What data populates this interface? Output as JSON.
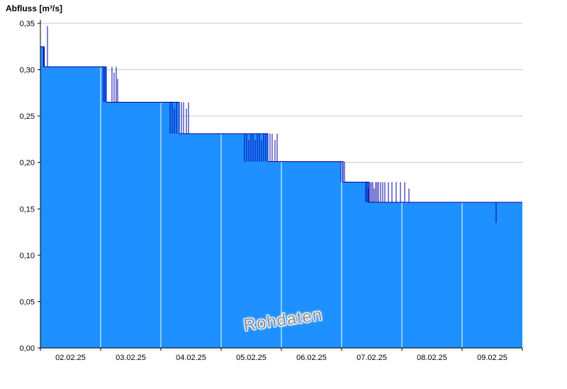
{
  "chart_data": {
    "type": "area",
    "title": "Abfluss [m³/s]",
    "ylabel": "Abfluss [m³/s]",
    "watermark": "Rohdaten",
    "grid": "horizontal",
    "legend": "none",
    "ylim": [
      0,
      0.35
    ],
    "yticks": [
      {
        "value": 0.0,
        "label": "0,00"
      },
      {
        "value": 0.05,
        "label": "0,05"
      },
      {
        "value": 0.1,
        "label": "0,10"
      },
      {
        "value": 0.15,
        "label": "0,15"
      },
      {
        "value": 0.2,
        "label": "0,20"
      },
      {
        "value": 0.25,
        "label": "0,25"
      },
      {
        "value": 0.3,
        "label": "0,30"
      },
      {
        "value": 0.35,
        "label": "0,35"
      }
    ],
    "x_axis": {
      "range_days": 8,
      "days": [
        "02.02.25",
        "03.02.25",
        "04.02.25",
        "05.02.25",
        "06.02.25",
        "07.02.25",
        "08.02.25",
        "09.02.25"
      ]
    },
    "series": {
      "name": "Rohdaten",
      "unit": "m³/s",
      "steps": [
        {
          "t": 0.0,
          "v": 0.325
        },
        {
          "t": 0.05,
          "v": 0.303
        },
        {
          "t": 1.094,
          "v": 0.265
        },
        {
          "t": 2.306,
          "v": 0.231
        },
        {
          "t": 3.776,
          "v": 0.201
        },
        {
          "t": 5.023,
          "v": 0.179
        },
        {
          "t": 5.45,
          "v": 0.157
        }
      ],
      "spikes": [
        {
          "t": 0.065,
          "lo": 0.303,
          "hi": 0.325
        },
        {
          "t": 0.115,
          "lo": 0.303,
          "hi": 0.347
        },
        {
          "t": 1.047,
          "lo": 0.265,
          "hi": 0.303
        },
        {
          "t": 1.071,
          "lo": 0.265,
          "hi": 0.303
        },
        {
          "t": 1.188,
          "lo": 0.265,
          "hi": 0.303
        },
        {
          "t": 1.224,
          "lo": 0.265,
          "hi": 0.297
        },
        {
          "t": 1.259,
          "lo": 0.265,
          "hi": 0.303
        },
        {
          "t": 1.282,
          "lo": 0.265,
          "hi": 0.29
        },
        {
          "t": 2.153,
          "lo": 0.231,
          "hi": 0.265
        },
        {
          "t": 2.188,
          "lo": 0.231,
          "hi": 0.265
        },
        {
          "t": 2.224,
          "lo": 0.231,
          "hi": 0.258
        },
        {
          "t": 2.259,
          "lo": 0.231,
          "hi": 0.265
        },
        {
          "t": 2.341,
          "lo": 0.231,
          "hi": 0.265
        },
        {
          "t": 2.376,
          "lo": 0.231,
          "hi": 0.265
        },
        {
          "t": 2.424,
          "lo": 0.231,
          "hi": 0.258
        },
        {
          "t": 2.459,
          "lo": 0.231,
          "hi": 0.265
        },
        {
          "t": 3.388,
          "lo": 0.201,
          "hi": 0.231
        },
        {
          "t": 3.424,
          "lo": 0.201,
          "hi": 0.231
        },
        {
          "t": 3.459,
          "lo": 0.201,
          "hi": 0.224
        },
        {
          "t": 3.494,
          "lo": 0.201,
          "hi": 0.231
        },
        {
          "t": 3.529,
          "lo": 0.201,
          "hi": 0.231
        },
        {
          "t": 3.565,
          "lo": 0.201,
          "hi": 0.224
        },
        {
          "t": 3.6,
          "lo": 0.201,
          "hi": 0.231
        },
        {
          "t": 3.635,
          "lo": 0.201,
          "hi": 0.231
        },
        {
          "t": 3.671,
          "lo": 0.201,
          "hi": 0.224
        },
        {
          "t": 3.706,
          "lo": 0.201,
          "hi": 0.231
        },
        {
          "t": 3.741,
          "lo": 0.201,
          "hi": 0.231
        },
        {
          "t": 3.812,
          "lo": 0.201,
          "hi": 0.231
        },
        {
          "t": 3.847,
          "lo": 0.201,
          "hi": 0.231
        },
        {
          "t": 3.894,
          "lo": 0.201,
          "hi": 0.224
        },
        {
          "t": 3.929,
          "lo": 0.201,
          "hi": 0.231
        },
        {
          "t": 4.988,
          "lo": 0.179,
          "hi": 0.201
        },
        {
          "t": 5.047,
          "lo": 0.179,
          "hi": 0.201
        },
        {
          "t": 5.4,
          "lo": 0.157,
          "hi": 0.179
        },
        {
          "t": 5.424,
          "lo": 0.157,
          "hi": 0.179
        },
        {
          "t": 5.447,
          "lo": 0.157,
          "hi": 0.172
        },
        {
          "t": 5.471,
          "lo": 0.157,
          "hi": 0.179
        },
        {
          "t": 5.494,
          "lo": 0.157,
          "hi": 0.179
        },
        {
          "t": 5.518,
          "lo": 0.157,
          "hi": 0.179
        },
        {
          "t": 5.541,
          "lo": 0.157,
          "hi": 0.172
        },
        {
          "t": 5.565,
          "lo": 0.157,
          "hi": 0.179
        },
        {
          "t": 5.588,
          "lo": 0.157,
          "hi": 0.179
        },
        {
          "t": 5.612,
          "lo": 0.157,
          "hi": 0.179
        },
        {
          "t": 5.647,
          "lo": 0.157,
          "hi": 0.179
        },
        {
          "t": 5.682,
          "lo": 0.157,
          "hi": 0.179
        },
        {
          "t": 5.718,
          "lo": 0.157,
          "hi": 0.179
        },
        {
          "t": 5.776,
          "lo": 0.157,
          "hi": 0.179
        },
        {
          "t": 5.835,
          "lo": 0.157,
          "hi": 0.179
        },
        {
          "t": 5.906,
          "lo": 0.157,
          "hi": 0.179
        },
        {
          "t": 5.976,
          "lo": 0.157,
          "hi": 0.179
        },
        {
          "t": 6.047,
          "lo": 0.157,
          "hi": 0.179
        },
        {
          "t": 6.118,
          "lo": 0.157,
          "hi": 0.172
        },
        {
          "t": 7.565,
          "lo": 0.135,
          "hi": 0.157
        }
      ]
    },
    "colors": {
      "fill": "#1E90FF",
      "line": "#0000A8",
      "grid": "#C9C9C9",
      "axis": "#000000",
      "day_separator": "#FFFFFF",
      "watermark": "#8C8C8C",
      "text": "#000000"
    }
  }
}
